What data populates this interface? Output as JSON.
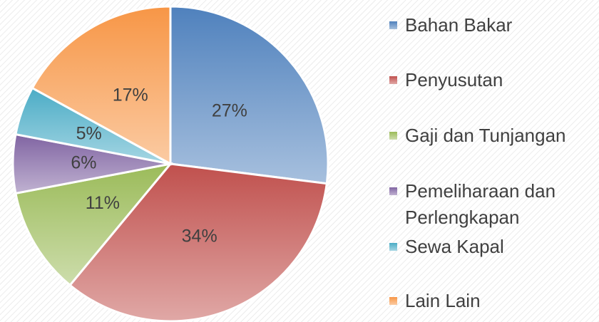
{
  "chart_data": {
    "type": "pie",
    "categories": [
      "Bahan Bakar",
      "Penyusutan",
      "Gaji dan Tunjangan",
      "Pemeliharaan dan Perlengkapan",
      "Sewa Kapal",
      "Lain Lain"
    ],
    "values": [
      27,
      34,
      11,
      6,
      5,
      17
    ],
    "value_labels": [
      "27%",
      "34%",
      "11%",
      "6%",
      "5%",
      "17%"
    ],
    "colors": [
      "#4f81bd",
      "#c0504d",
      "#9bbb59",
      "#8064a2",
      "#4bacc6",
      "#f79646"
    ],
    "legend": "right"
  }
}
